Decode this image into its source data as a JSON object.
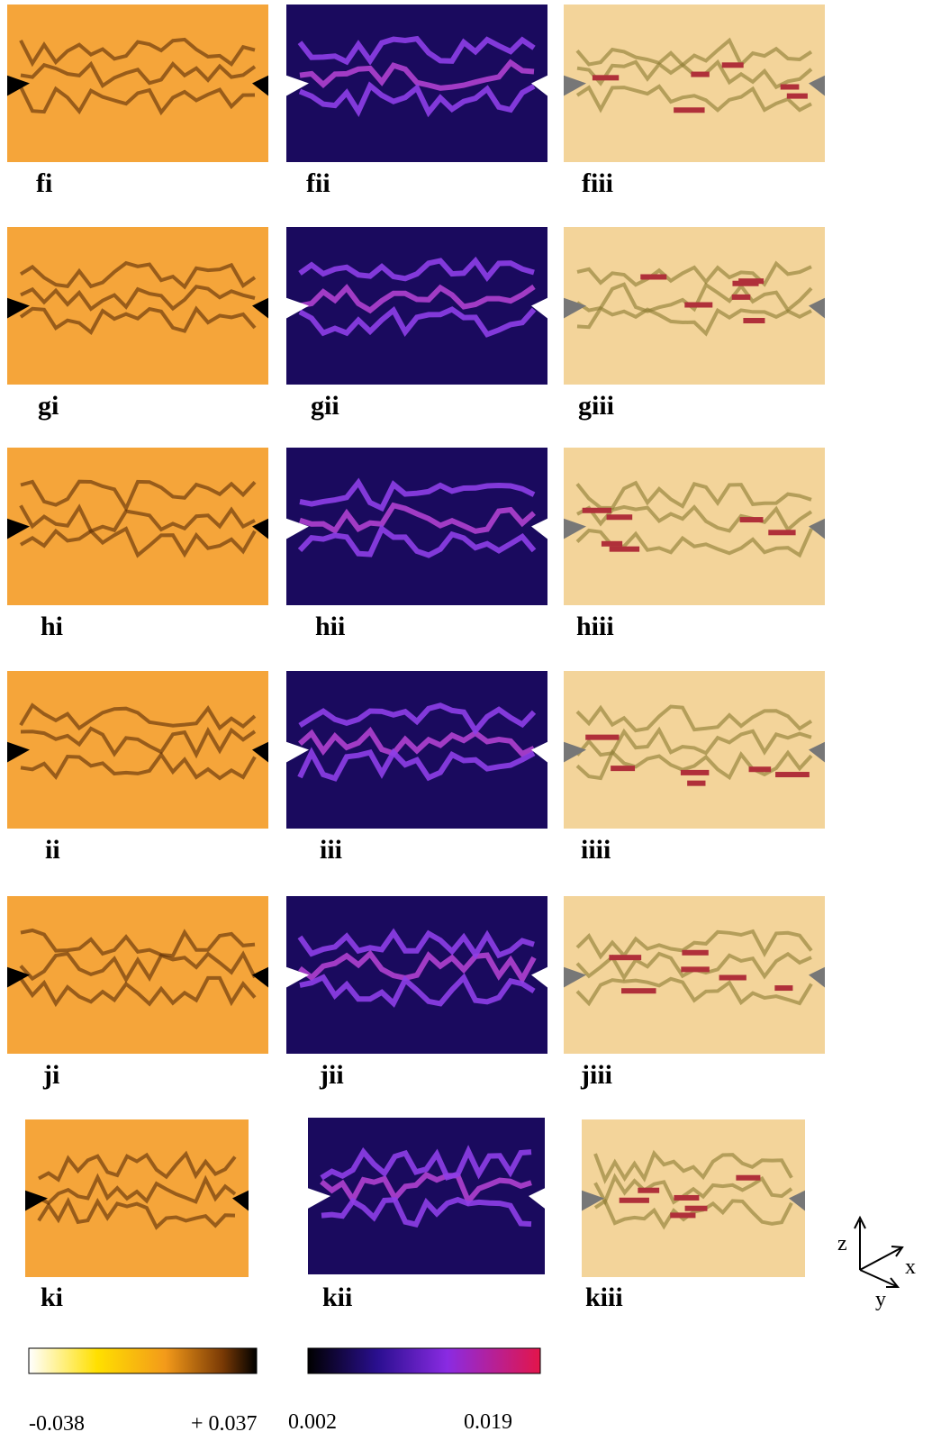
{
  "rows": [
    {
      "panels": [
        {
          "label": "fi"
        },
        {
          "label": "fii"
        },
        {
          "label": "fiii"
        }
      ]
    },
    {
      "panels": [
        {
          "label": "gi"
        },
        {
          "label": "gii"
        },
        {
          "label": "giii"
        }
      ]
    },
    {
      "panels": [
        {
          "label": "hi"
        },
        {
          "label": "hii"
        },
        {
          "label": "hiii"
        }
      ]
    },
    {
      "panels": [
        {
          "label": "ii"
        },
        {
          "label": "iii"
        },
        {
          "label": "iiii"
        }
      ]
    },
    {
      "panels": [
        {
          "label": "ji"
        },
        {
          "label": "jii"
        },
        {
          "label": "jiii"
        }
      ]
    },
    {
      "panels": [
        {
          "label": "ki"
        },
        {
          "label": "kii"
        },
        {
          "label": "kiii"
        }
      ]
    }
  ],
  "colorbars": [
    {
      "min_label": "-0.038",
      "max_label": "+ 0.037"
    },
    {
      "min_label": "0.002",
      "max_label": "0.019"
    }
  ],
  "axes": {
    "z": "z",
    "x": "x",
    "y": "y"
  }
}
